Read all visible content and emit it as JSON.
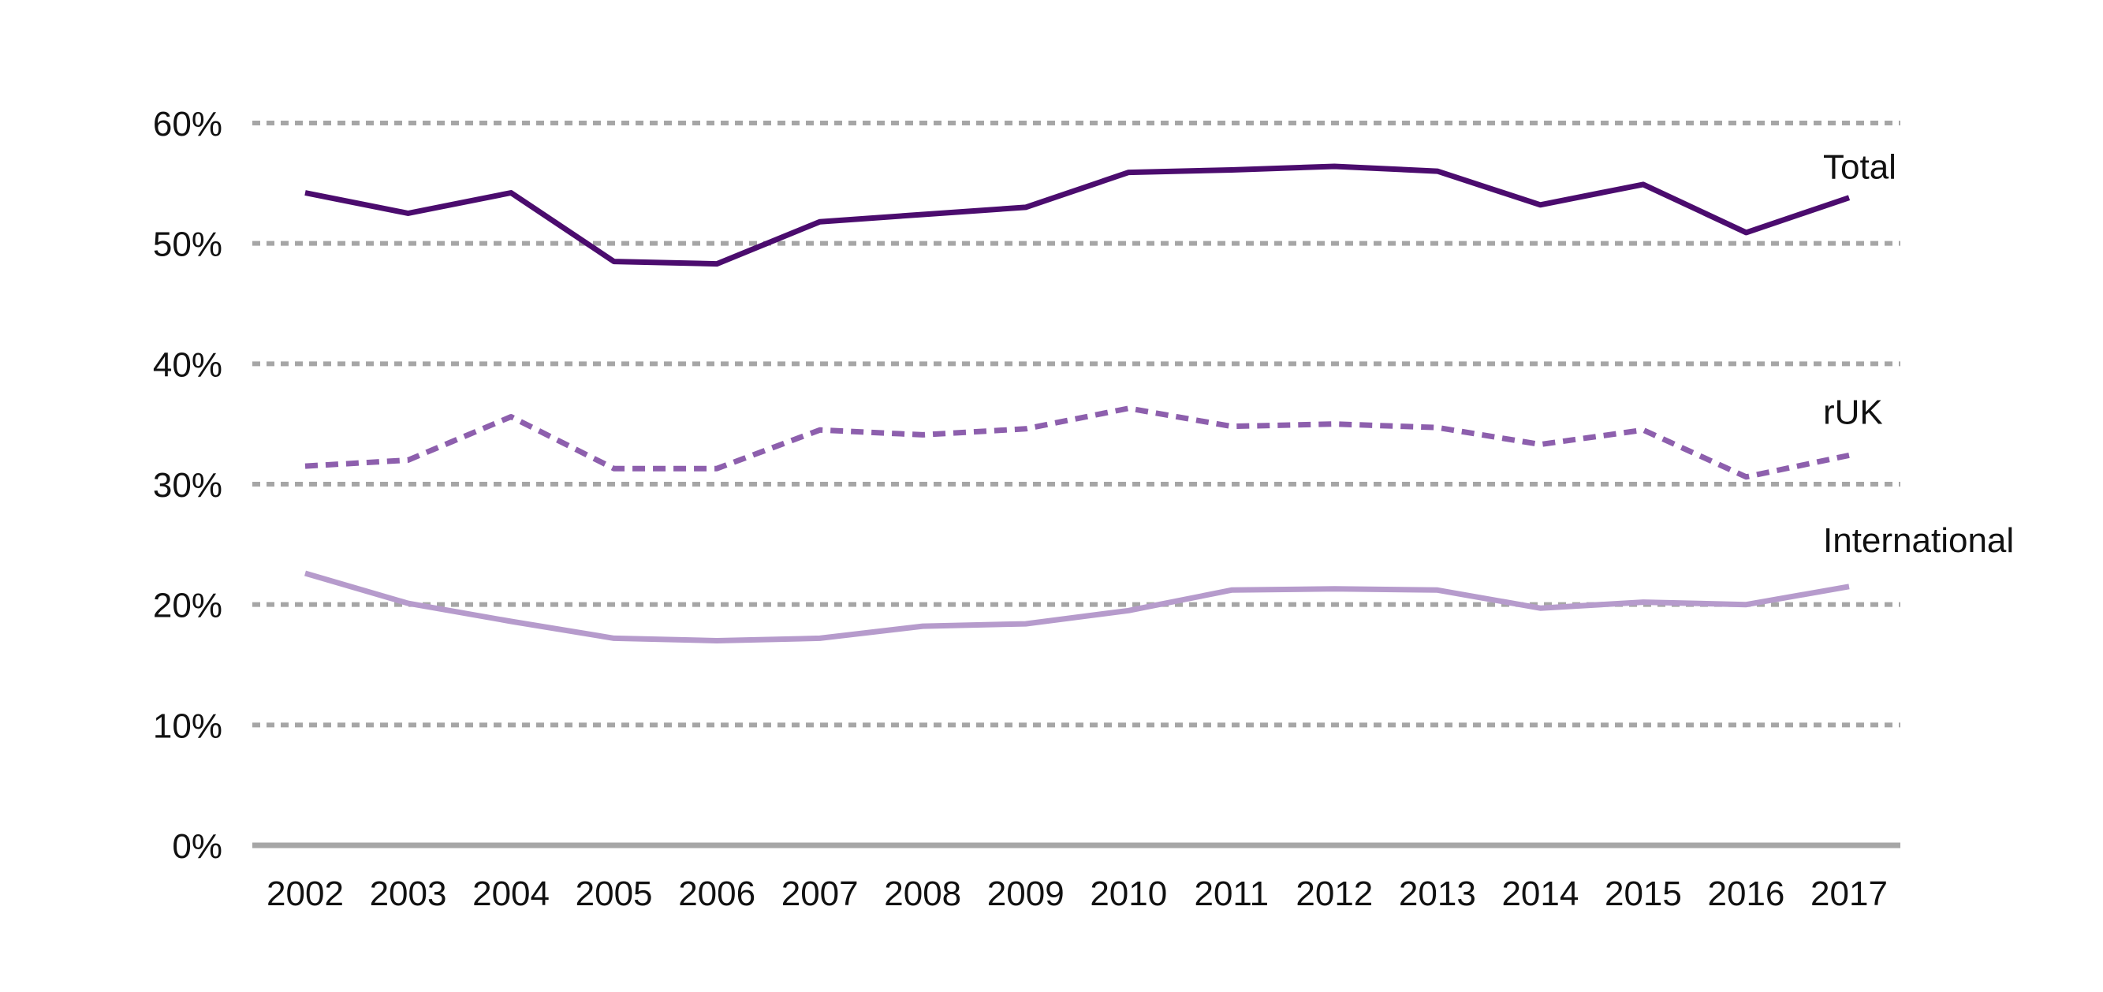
{
  "chart_data": {
    "type": "line",
    "title": "",
    "xlabel": "",
    "ylabel": "",
    "ylim": [
      0,
      60
    ],
    "y_ticks": [
      0,
      10,
      20,
      30,
      40,
      50,
      60
    ],
    "y_tick_format": "%",
    "grid": true,
    "legend": "inline-right",
    "x": [
      "2002",
      "2003",
      "2004",
      "2005",
      "2006",
      "2007",
      "2008",
      "2009",
      "2010",
      "2011",
      "2012",
      "2013",
      "2014",
      "2015",
      "2016",
      "2017"
    ],
    "series": [
      {
        "name": "Total",
        "color": "#4b0c6e",
        "style": "solid",
        "values": [
          54.2,
          52.5,
          54.2,
          48.5,
          48.3,
          51.8,
          52.4,
          53.0,
          55.9,
          56.1,
          56.4,
          56.0,
          53.2,
          54.9,
          50.9,
          53.8
        ]
      },
      {
        "name": "rUK",
        "color": "#8d5fad",
        "style": "dashed",
        "values": [
          31.5,
          32.0,
          35.6,
          31.3,
          31.3,
          34.5,
          34.1,
          34.6,
          36.3,
          34.8,
          35.0,
          34.7,
          33.3,
          34.5,
          30.6,
          32.4
        ]
      },
      {
        "name": "International",
        "color": "#b69bcc",
        "style": "solid",
        "values": [
          22.6,
          20.1,
          18.6,
          17.2,
          17.0,
          17.2,
          18.2,
          18.4,
          19.5,
          21.2,
          21.3,
          21.2,
          19.7,
          20.2,
          20.0,
          21.5
        ]
      }
    ]
  }
}
